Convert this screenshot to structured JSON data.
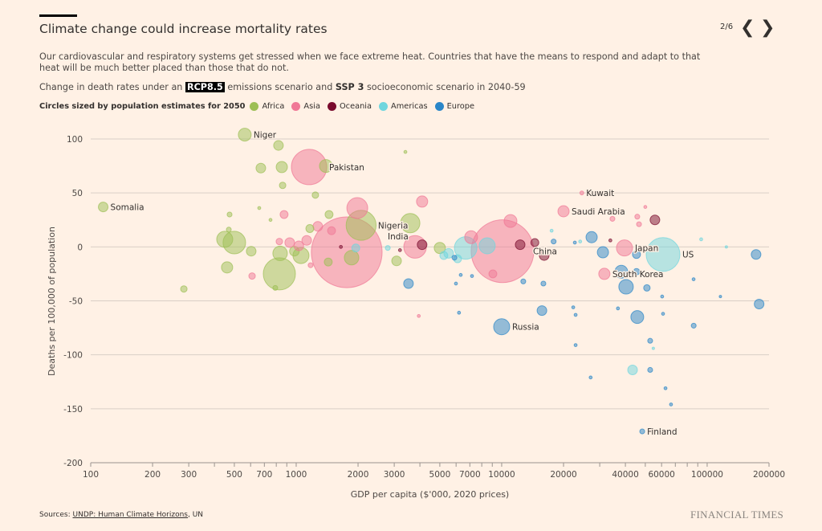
{
  "header": {
    "title": "Climate change could increase mortality rates",
    "pager": "2/6",
    "prev_icon": "chevron-left-icon",
    "next_icon": "chevron-right-icon",
    "description": "Our cardiovascular and respiratory systems get stressed when we face extreme heat. Countries that have the means to respond and adapt to that heat will be much better placed than those that do not.",
    "subtitle_pre": "Change in death rates under an",
    "subtitle_rcp": "RCP8.5",
    "subtitle_mid": "emissions scenario and",
    "subtitle_ssp": "SSP 3",
    "subtitle_post": "socioeconomic scenario in 2040-59"
  },
  "legend": {
    "label": "Circles sized by population estimates for 2050",
    "items": [
      {
        "name": "Africa",
        "color": "#9dbf55"
      },
      {
        "name": "Asia",
        "color": "#f07896"
      },
      {
        "name": "Oceania",
        "color": "#7a0b2e"
      },
      {
        "name": "Americas",
        "color": "#6fd6de"
      },
      {
        "name": "Europe",
        "color": "#2a86c8"
      }
    ]
  },
  "footer": {
    "sources_label": "Sources:",
    "sources_link": "UNDP: Human Climate Horizons",
    "sources_rest": ", UN",
    "brand": "FINANCIAL TIMES"
  },
  "chart_data": {
    "type": "scatter",
    "xlabel": "GDP per capita ($'000, 2020 prices)",
    "ylabel": "Deaths per 100,000 of population",
    "xscale": "log",
    "xlim": [
      100,
      200000
    ],
    "ylim": [
      -200,
      100
    ],
    "xticks": [
      100,
      200,
      300,
      500,
      700,
      1000,
      2000,
      3000,
      5000,
      7000,
      10000,
      20000,
      40000,
      60000,
      100000,
      200000
    ],
    "xtick_labels": [
      "100",
      "200",
      "300",
      "500",
      "700",
      "1000",
      "2000",
      "3000",
      "5000",
      "7000",
      "10000",
      "20000",
      "40000",
      "60000",
      "100000",
      "200000"
    ],
    "yticks": [
      100,
      50,
      0,
      -50,
      -100,
      -150,
      -200
    ],
    "ytick_labels": [
      "100",
      "50",
      "0",
      "-50",
      "-100",
      "-150",
      "-200"
    ],
    "grid": "horizontal",
    "size_encoding": "population 2050 (millions, estimated from circle area)",
    "points": [
      {
        "gdp": 562,
        "deaths": 104,
        "pop": 55,
        "region": "Africa",
        "label": "Niger"
      },
      {
        "gdp": 820,
        "deaths": 94,
        "pop": 31,
        "region": "Africa"
      },
      {
        "gdp": 673,
        "deaths": 73,
        "pop": 31,
        "region": "Africa"
      },
      {
        "gdp": 851,
        "deaths": 74,
        "pop": 42,
        "region": "Africa"
      },
      {
        "gdp": 859,
        "deaths": 57,
        "pop": 14,
        "region": "Africa"
      },
      {
        "gdp": 1240,
        "deaths": 48,
        "pop": 14,
        "region": "Africa"
      },
      {
        "gdp": 1395,
        "deaths": 75,
        "pop": 55,
        "region": "Africa"
      },
      {
        "gdp": 115,
        "deaths": 37,
        "pop": 31,
        "region": "Africa",
        "label": "Somalia"
      },
      {
        "gdp": 474,
        "deaths": 30,
        "pop": 8,
        "region": "Africa"
      },
      {
        "gdp": 661,
        "deaths": 36,
        "pop": 3,
        "region": "Africa"
      },
      {
        "gdp": 750,
        "deaths": 25,
        "pop": 3,
        "region": "Africa"
      },
      {
        "gdp": 470,
        "deaths": 16,
        "pop": 8,
        "region": "Africa"
      },
      {
        "gdp": 449,
        "deaths": 7,
        "pop": 86,
        "region": "Africa"
      },
      {
        "gdp": 500,
        "deaths": 4,
        "pop": 170,
        "region": "Africa"
      },
      {
        "gdp": 604,
        "deaths": -4,
        "pop": 31,
        "region": "Africa"
      },
      {
        "gdp": 461,
        "deaths": -19,
        "pop": 42,
        "region": "Africa"
      },
      {
        "gdp": 828,
        "deaths": -25,
        "pop": 344,
        "region": "Africa"
      },
      {
        "gdp": 835,
        "deaths": -6,
        "pop": 70,
        "region": "Africa"
      },
      {
        "gdp": 1055,
        "deaths": -8,
        "pop": 86,
        "region": "Africa"
      },
      {
        "gdp": 980,
        "deaths": -4,
        "pop": 31,
        "region": "Africa"
      },
      {
        "gdp": 791,
        "deaths": -38,
        "pop": 8,
        "region": "Africa"
      },
      {
        "gdp": 284,
        "deaths": -39,
        "pop": 14,
        "region": "Africa"
      },
      {
        "gdp": 1432,
        "deaths": -14,
        "pop": 21,
        "region": "Africa"
      },
      {
        "gdp": 1445,
        "deaths": 30,
        "pop": 21,
        "region": "Africa"
      },
      {
        "gdp": 1165,
        "deaths": 17,
        "pop": 21,
        "region": "Africa"
      },
      {
        "gdp": 1860,
        "deaths": -10,
        "pop": 70,
        "region": "Africa"
      },
      {
        "gdp": 2070,
        "deaths": 20,
        "pop": 300,
        "region": "Africa",
        "label": "Nigeria"
      },
      {
        "gdp": 3590,
        "deaths": 22,
        "pop": 124,
        "region": "Africa"
      },
      {
        "gdp": 3080,
        "deaths": -13,
        "pop": 31,
        "region": "Africa"
      },
      {
        "gdp": 5000,
        "deaths": -1,
        "pop": 42,
        "region": "Africa"
      },
      {
        "gdp": 3400,
        "deaths": 88,
        "pop": 3,
        "region": "Africa"
      },
      {
        "gdp": 1155,
        "deaths": 74,
        "pop": 416,
        "region": "Asia",
        "label": "Pakistan"
      },
      {
        "gdp": 1762,
        "deaths": -5,
        "pop": 1670,
        "region": "Asia",
        "label": "India"
      },
      {
        "gdp": 10090,
        "deaths": -4,
        "pop": 1310,
        "region": "Asia",
        "label": "China"
      },
      {
        "gdp": 1983,
        "deaths": 36,
        "pop": 145,
        "region": "Asia"
      },
      {
        "gdp": 4100,
        "deaths": 42,
        "pop": 42,
        "region": "Asia"
      },
      {
        "gdp": 11040,
        "deaths": 24,
        "pop": 55,
        "region": "Asia"
      },
      {
        "gdp": 20000,
        "deaths": 33,
        "pop": 42,
        "region": "Asia",
        "label": "Saudi Arabia"
      },
      {
        "gdp": 24550,
        "deaths": 50,
        "pop": 5,
        "region": "Asia",
        "label": "Kuwait"
      },
      {
        "gdp": 39600,
        "deaths": -1,
        "pop": 86,
        "region": "Asia",
        "label": "Japan"
      },
      {
        "gdp": 31600,
        "deaths": -25,
        "pop": 42,
        "region": "Asia",
        "label": "South Korea"
      },
      {
        "gdp": 873,
        "deaths": 30,
        "pop": 21,
        "region": "Asia"
      },
      {
        "gdp": 930,
        "deaths": 4,
        "pop": 31,
        "region": "Asia"
      },
      {
        "gdp": 1274,
        "deaths": 19,
        "pop": 31,
        "region": "Asia"
      },
      {
        "gdp": 1030,
        "deaths": 1,
        "pop": 31,
        "region": "Asia"
      },
      {
        "gdp": 828,
        "deaths": 5,
        "pop": 14,
        "region": "Asia"
      },
      {
        "gdp": 1125,
        "deaths": 6,
        "pop": 31,
        "region": "Asia"
      },
      {
        "gdp": 1175,
        "deaths": -17,
        "pop": 8,
        "region": "Asia"
      },
      {
        "gdp": 1486,
        "deaths": 15,
        "pop": 21,
        "region": "Asia"
      },
      {
        "gdp": 610,
        "deaths": -27,
        "pop": 14,
        "region": "Asia"
      },
      {
        "gdp": 3790,
        "deaths": 0,
        "pop": 170,
        "region": "Asia"
      },
      {
        "gdp": 7100,
        "deaths": 9,
        "pop": 55,
        "region": "Asia"
      },
      {
        "gdp": 9060,
        "deaths": -25,
        "pop": 21,
        "region": "Asia"
      },
      {
        "gdp": 3950,
        "deaths": -64,
        "pop": 3,
        "region": "Asia"
      },
      {
        "gdp": 34600,
        "deaths": 26,
        "pop": 8,
        "region": "Asia"
      },
      {
        "gdp": 45700,
        "deaths": 28,
        "pop": 8,
        "region": "Asia"
      },
      {
        "gdp": 46600,
        "deaths": 21,
        "pop": 8,
        "region": "Asia"
      },
      {
        "gdp": 50000,
        "deaths": 37,
        "pop": 3,
        "region": "Asia"
      },
      {
        "gdp": 55700,
        "deaths": 25,
        "pop": 31,
        "region": "Oceania"
      },
      {
        "gdp": 4100,
        "deaths": 2,
        "pop": 31,
        "region": "Oceania"
      },
      {
        "gdp": 12300,
        "deaths": 2,
        "pop": 31,
        "region": "Oceania"
      },
      {
        "gdp": 14500,
        "deaths": 4,
        "pop": 21,
        "region": "Oceania"
      },
      {
        "gdp": 16100,
        "deaths": -8,
        "pop": 31,
        "region": "Oceania"
      },
      {
        "gdp": 33800,
        "deaths": 6,
        "pop": 3,
        "region": "Oceania"
      },
      {
        "gdp": 1650,
        "deaths": 0,
        "pop": 3,
        "region": "Oceania"
      },
      {
        "gdp": 3200,
        "deaths": -3,
        "pop": 3,
        "region": "Oceania"
      },
      {
        "gdp": 61000,
        "deaths": -7,
        "pop": 380,
        "region": "Americas",
        "label": "US"
      },
      {
        "gdp": 6680,
        "deaths": -1,
        "pop": 170,
        "region": "Americas"
      },
      {
        "gdp": 8500,
        "deaths": 1,
        "pop": 86,
        "region": "Americas"
      },
      {
        "gdp": 5520,
        "deaths": -6,
        "pop": 31,
        "region": "Americas"
      },
      {
        "gdp": 6100,
        "deaths": -11,
        "pop": 21,
        "region": "Americas"
      },
      {
        "gdp": 5230,
        "deaths": -8,
        "pop": 21,
        "region": "Americas"
      },
      {
        "gdp": 43350,
        "deaths": -114,
        "pop": 31,
        "region": "Americas"
      },
      {
        "gdp": 93500,
        "deaths": 7,
        "pop": 3,
        "region": "Americas"
      },
      {
        "gdp": 124000,
        "deaths": 0,
        "pop": 1,
        "region": "Americas"
      },
      {
        "gdp": 17500,
        "deaths": 15,
        "pop": 3,
        "region": "Americas"
      },
      {
        "gdp": 54700,
        "deaths": -94,
        "pop": 2,
        "region": "Americas"
      },
      {
        "gdp": 1950,
        "deaths": -1,
        "pop": 21,
        "region": "Americas"
      },
      {
        "gdp": 2790,
        "deaths": -1,
        "pop": 8,
        "region": "Americas"
      },
      {
        "gdp": 24100,
        "deaths": 5,
        "pop": 3,
        "region": "Americas"
      },
      {
        "gdp": 10000,
        "deaths": -74,
        "pop": 86,
        "region": "Europe",
        "label": "Russia"
      },
      {
        "gdp": 48300,
        "deaths": -171,
        "pop": 8,
        "region": "Europe",
        "label": "Finland"
      },
      {
        "gdp": 27400,
        "deaths": 9,
        "pop": 42,
        "region": "Europe"
      },
      {
        "gdp": 31100,
        "deaths": -5,
        "pop": 42,
        "region": "Europe"
      },
      {
        "gdp": 40300,
        "deaths": -37,
        "pop": 70,
        "region": "Europe"
      },
      {
        "gdp": 38200,
        "deaths": -23,
        "pop": 55,
        "region": "Europe"
      },
      {
        "gdp": 45300,
        "deaths": -7,
        "pop": 21,
        "region": "Europe"
      },
      {
        "gdp": 45700,
        "deaths": -65,
        "pop": 55,
        "region": "Europe"
      },
      {
        "gdp": 173000,
        "deaths": -7,
        "pop": 31,
        "region": "Europe"
      },
      {
        "gdp": 179000,
        "deaths": -53,
        "pop": 31,
        "region": "Europe"
      },
      {
        "gdp": 15700,
        "deaths": -59,
        "pop": 31,
        "region": "Europe"
      },
      {
        "gdp": 3520,
        "deaths": -34,
        "pop": 31,
        "region": "Europe"
      },
      {
        "gdp": 12740,
        "deaths": -32,
        "pop": 8,
        "region": "Europe"
      },
      {
        "gdp": 15960,
        "deaths": -34,
        "pop": 8,
        "region": "Europe"
      },
      {
        "gdp": 50900,
        "deaths": -38,
        "pop": 14,
        "region": "Europe"
      },
      {
        "gdp": 45300,
        "deaths": -23,
        "pop": 14,
        "region": "Europe"
      },
      {
        "gdp": 85900,
        "deaths": -30,
        "pop": 3,
        "region": "Europe"
      },
      {
        "gdp": 116000,
        "deaths": -46,
        "pop": 1,
        "region": "Europe"
      },
      {
        "gdp": 60400,
        "deaths": -46,
        "pop": 3,
        "region": "Europe"
      },
      {
        "gdp": 17900,
        "deaths": 5,
        "pop": 8,
        "region": "Europe"
      },
      {
        "gdp": 22700,
        "deaths": 4,
        "pop": 3,
        "region": "Europe"
      },
      {
        "gdp": 22300,
        "deaths": -56,
        "pop": 3,
        "region": "Europe"
      },
      {
        "gdp": 22900,
        "deaths": -63,
        "pop": 3,
        "region": "Europe"
      },
      {
        "gdp": 22900,
        "deaths": -91,
        "pop": 3,
        "region": "Europe"
      },
      {
        "gdp": 36800,
        "deaths": -57,
        "pop": 3,
        "region": "Europe"
      },
      {
        "gdp": 61000,
        "deaths": -62,
        "pop": 3,
        "region": "Europe"
      },
      {
        "gdp": 52800,
        "deaths": -87,
        "pop": 8,
        "region": "Europe"
      },
      {
        "gdp": 52800,
        "deaths": -114,
        "pop": 8,
        "region": "Europe"
      },
      {
        "gdp": 86000,
        "deaths": -73,
        "pop": 8,
        "region": "Europe"
      },
      {
        "gdp": 62700,
        "deaths": -131,
        "pop": 3,
        "region": "Europe"
      },
      {
        "gdp": 66700,
        "deaths": -146,
        "pop": 3,
        "region": "Europe"
      },
      {
        "gdp": 27100,
        "deaths": -121,
        "pop": 3,
        "region": "Europe"
      },
      {
        "gdp": 11900,
        "deaths": -75,
        "pop": 3,
        "region": "Europe"
      },
      {
        "gdp": 6200,
        "deaths": -61,
        "pop": 3,
        "region": "Europe"
      },
      {
        "gdp": 6320,
        "deaths": -26,
        "pop": 3,
        "region": "Europe"
      },
      {
        "gdp": 7170,
        "deaths": -27,
        "pop": 3,
        "region": "Europe"
      },
      {
        "gdp": 5990,
        "deaths": -34,
        "pop": 3,
        "region": "Europe"
      },
      {
        "gdp": 5890,
        "deaths": -10,
        "pop": 8,
        "region": "Europe"
      }
    ]
  }
}
